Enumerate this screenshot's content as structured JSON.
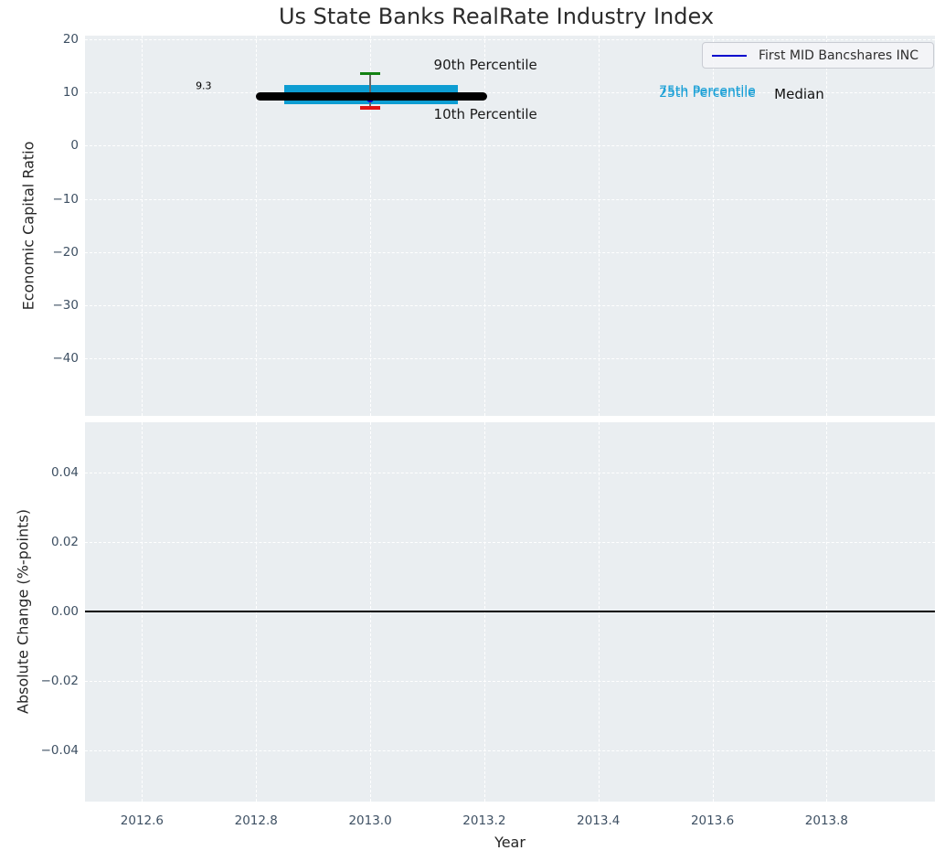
{
  "figure": {
    "title": "Us State Banks RealRate Industry Index"
  },
  "legend": {
    "label": "First MID Bancshares INC",
    "line_color": "#0000cd"
  },
  "colors": {
    "axes_bg": "#eaeef1",
    "grid": "#ffffff",
    "tick_label": "#3e5063",
    "box_fill": "#0d9dd2",
    "median_line": "#000000",
    "cap_90th": "#128112",
    "cap_10th": "#e01414",
    "whisker": "#666666",
    "company_marker": "#0000cd",
    "zero_line": "#000000"
  },
  "chart_data": [
    {
      "type": "boxplot",
      "title": "Us State Banks RealRate Industry Index",
      "ylabel": "Economic Capital Ratio",
      "xlabel": "",
      "xlim": [
        2012.5,
        2013.99
      ],
      "ylim": [
        -50.8,
        20.7
      ],
      "grid": "white-dashed",
      "yticks": [
        {
          "v": 20,
          "label": "20"
        },
        {
          "v": 10,
          "label": "10"
        },
        {
          "v": 0,
          "label": "0"
        },
        {
          "v": -10,
          "label": "−10"
        },
        {
          "v": -20,
          "label": "−20"
        },
        {
          "v": -30,
          "label": "−30"
        },
        {
          "v": -40,
          "label": "−40"
        }
      ],
      "boxplot": {
        "x": 2013.0,
        "median": 9.3,
        "q1": 7.85,
        "q3": 11.45,
        "p10": 7.15,
        "p90": 13.55,
        "median_x_span": [
          2012.8,
          2013.205
        ],
        "box_x_span": [
          2012.85,
          2013.154
        ],
        "cap_half_width": 0.0176
      },
      "series": [
        {
          "name": "First MID Bancshares INC",
          "type": "line",
          "color": "#0000cd",
          "points": [
            {
              "x": 2013.0,
              "y": 8.9
            }
          ]
        }
      ],
      "annotations": [
        {
          "id": "median-value-label",
          "text": "9.3",
          "x": 2012.708,
          "y": 11.25,
          "color": "#000000",
          "size": 11
        },
        {
          "id": "p90-label",
          "text": "90th Percentile",
          "x": 2013.202,
          "y": 15.2,
          "color": "#1a1a1a",
          "size": 15
        },
        {
          "id": "p10-label",
          "text": "10th Percentile",
          "x": 2013.202,
          "y": 5.9,
          "color": "#1a1a1a",
          "size": 15
        },
        {
          "id": "p75-label",
          "text": "75th Percentile",
          "x": 2013.591,
          "y": 10.25,
          "color": "#189fd6",
          "size": 14
        },
        {
          "id": "p25-label",
          "text": "25th Percentile",
          "x": 2013.591,
          "y": 9.88,
          "color": "#189fd6",
          "size": 14
        },
        {
          "id": "median-label",
          "text": "Median",
          "x": 2013.752,
          "y": 9.75,
          "color": "#111111",
          "size": 15
        }
      ],
      "legend_position": "upper right"
    },
    {
      "type": "line",
      "title": "",
      "ylabel": "Absolute Change (%-points)",
      "xlabel": "Year",
      "xlim": [
        2012.5,
        2013.99
      ],
      "ylim": [
        -0.0547,
        0.0545
      ],
      "grid": "white-dashed",
      "yticks": [
        {
          "v": 0.04,
          "label": "0.04"
        },
        {
          "v": 0.02,
          "label": "0.02"
        },
        {
          "v": 0,
          "label": "0.00"
        },
        {
          "v": -0.02,
          "label": "−0.02"
        },
        {
          "v": -0.04,
          "label": "−0.04"
        }
      ],
      "xticks": [
        {
          "v": 2012.6,
          "label": "2012.6"
        },
        {
          "v": 2012.8,
          "label": "2012.8"
        },
        {
          "v": 2013.0,
          "label": "2013.0"
        },
        {
          "v": 2013.2,
          "label": "2013.2"
        },
        {
          "v": 2013.4,
          "label": "2013.4"
        },
        {
          "v": 2013.6,
          "label": "2013.6"
        },
        {
          "v": 2013.8,
          "label": "2013.8"
        }
      ],
      "zero_line_y": 0.0,
      "series": []
    }
  ]
}
